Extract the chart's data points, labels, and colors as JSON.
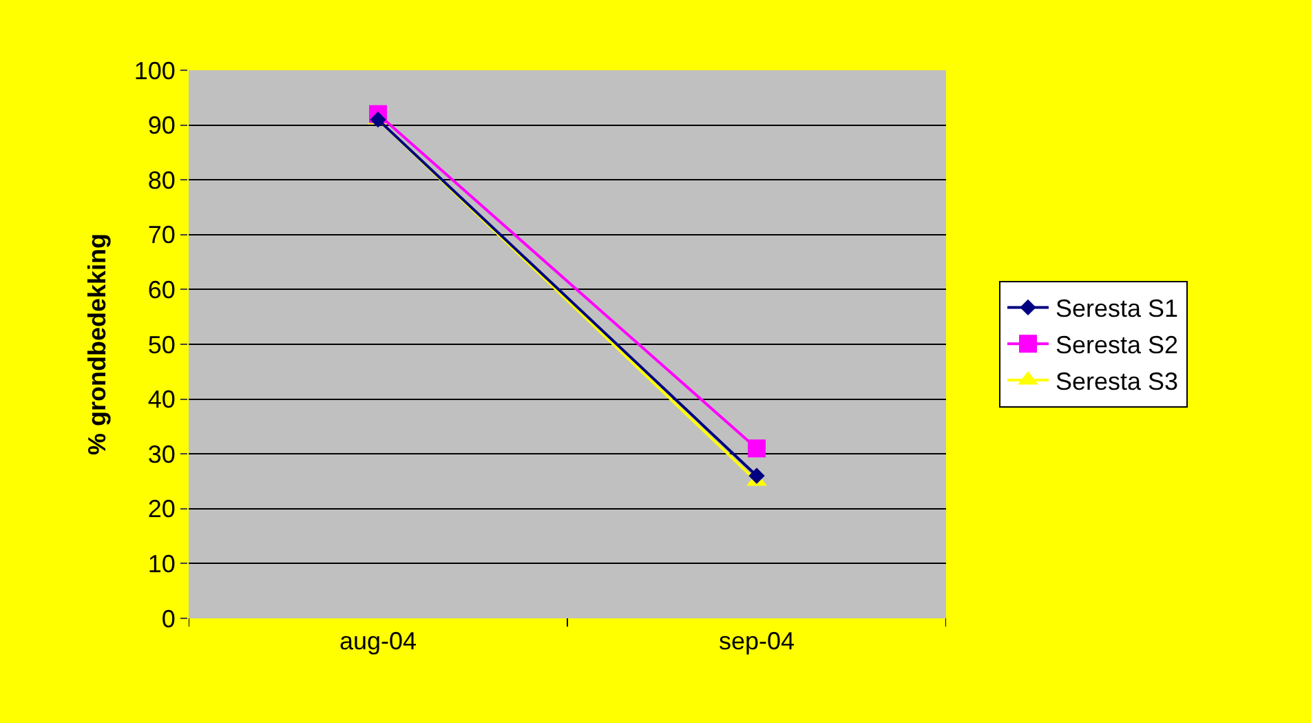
{
  "chart_data": {
    "type": "line",
    "ylabel": "% grondbedekking",
    "categories": [
      "aug-04",
      "sep-04"
    ],
    "series": [
      {
        "name": "Seresta S1",
        "color": "#000080",
        "marker": "diamond",
        "values": [
          91,
          26
        ]
      },
      {
        "name": "Seresta S2",
        "color": "#ff00ff",
        "marker": "square",
        "values": [
          92,
          31
        ]
      },
      {
        "name": "Seresta S3",
        "color": "#ffff00",
        "marker": "triangle",
        "values": [
          91,
          25
        ]
      }
    ],
    "ylim": [
      0,
      100
    ],
    "yticks": [
      0,
      10,
      20,
      30,
      40,
      50,
      60,
      70,
      80,
      90,
      100
    ],
    "grid": "y",
    "legend": "right",
    "line_style": "solid"
  }
}
